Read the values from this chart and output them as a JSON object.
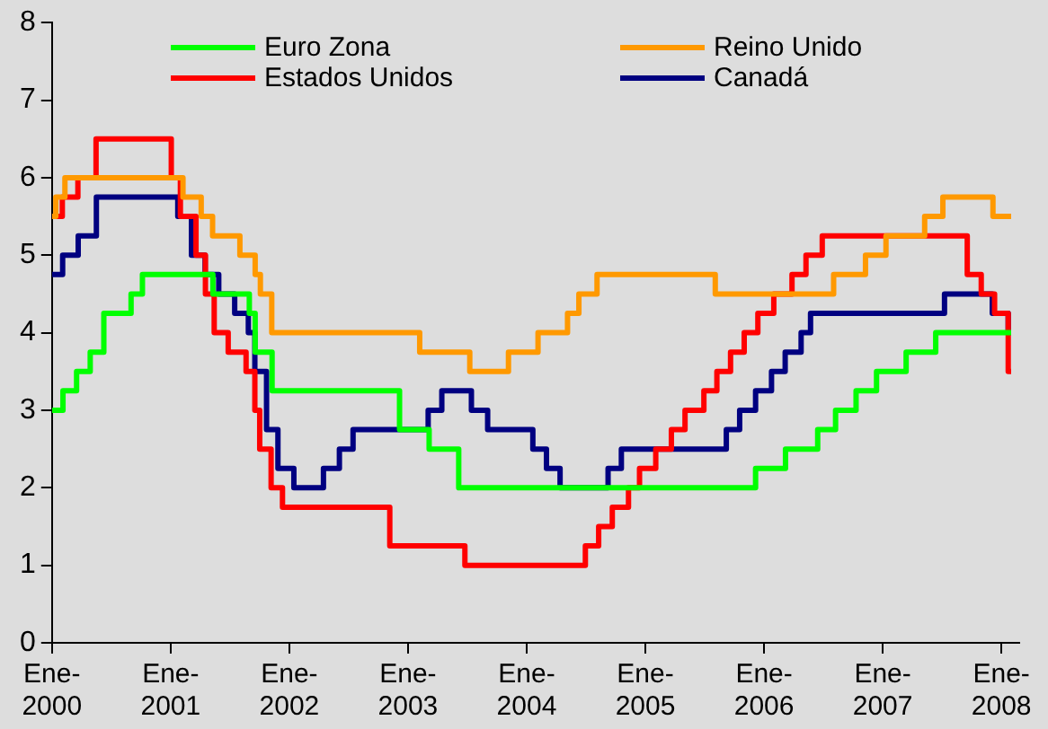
{
  "chart_data": {
    "type": "step",
    "legend": "top",
    "grid": false,
    "marker": "none",
    "line_style": "solid",
    "xlim": [
      "2000-01-01",
      "2008-02-25"
    ],
    "ylim": [
      0,
      8
    ],
    "xticks": [
      {
        "value": "2000-01",
        "label": "Ene-2000"
      },
      {
        "value": "2001-01",
        "label": "Ene-2001"
      },
      {
        "value": "2002-01",
        "label": "Ene-2002"
      },
      {
        "value": "2003-01",
        "label": "Ene-2003"
      },
      {
        "value": "2004-01",
        "label": "Ene-2004"
      },
      {
        "value": "2005-01",
        "label": "Ene-2005"
      },
      {
        "value": "2006-01",
        "label": "Ene-2006"
      },
      {
        "value": "2007-01",
        "label": "Ene-2007"
      },
      {
        "value": "2008-01",
        "label": "Ene-2008"
      }
    ],
    "yticks": [
      0,
      1,
      2,
      3,
      4,
      5,
      6,
      7,
      8
    ],
    "series": [
      {
        "name": "Euro Zona",
        "color": "#00ff00",
        "x": [
          "2000-01-01",
          "2000-02-04",
          "2000-03-17",
          "2000-04-28",
          "2000-06-09",
          "2000-09-01",
          "2000-10-06",
          "2001-05-11",
          "2001-08-31",
          "2001-09-18",
          "2001-11-09",
          "2002-12-06",
          "2003-03-07",
          "2003-06-06",
          "2005-12-06",
          "2006-03-08",
          "2006-06-15",
          "2006-08-09",
          "2006-10-11",
          "2006-12-13",
          "2007-03-14",
          "2007-06-13",
          "2008-01-31"
        ],
        "values": [
          3.0,
          3.25,
          3.5,
          3.75,
          4.25,
          4.5,
          4.75,
          4.5,
          4.25,
          3.75,
          3.25,
          2.75,
          2.5,
          2.0,
          2.25,
          2.5,
          2.75,
          3.0,
          3.25,
          3.5,
          3.75,
          4.0,
          4.0
        ]
      },
      {
        "name": "Reino Unido",
        "color": "#ff9900",
        "x": [
          "2000-01-01",
          "2000-01-13",
          "2000-02-10",
          "2001-02-08",
          "2001-04-05",
          "2001-05-10",
          "2001-08-02",
          "2001-09-18",
          "2001-10-04",
          "2001-11-08",
          "2003-02-06",
          "2003-07-10",
          "2003-11-06",
          "2004-02-05",
          "2004-05-06",
          "2004-06-10",
          "2004-08-05",
          "2005-08-04",
          "2006-08-03",
          "2006-11-09",
          "2007-01-11",
          "2007-05-10",
          "2007-07-05",
          "2007-12-06",
          "2008-01-31"
        ],
        "values": [
          5.5,
          5.75,
          6.0,
          5.75,
          5.5,
          5.25,
          5.0,
          4.75,
          4.5,
          4.0,
          3.75,
          3.5,
          3.75,
          4.0,
          4.25,
          4.5,
          4.75,
          4.5,
          4.75,
          5.0,
          5.25,
          5.5,
          5.75,
          5.5,
          5.5
        ]
      },
      {
        "name": "Estados Unidos",
        "color": "#ff0000",
        "x": [
          "2000-01-01",
          "2000-02-02",
          "2000-03-21",
          "2000-05-16",
          "2001-01-03",
          "2001-01-31",
          "2001-03-20",
          "2001-04-18",
          "2001-05-15",
          "2001-06-27",
          "2001-08-21",
          "2001-09-17",
          "2001-10-02",
          "2001-11-06",
          "2001-12-11",
          "2002-11-06",
          "2003-06-25",
          "2004-06-30",
          "2004-08-10",
          "2004-09-21",
          "2004-11-10",
          "2004-12-14",
          "2005-02-02",
          "2005-03-22",
          "2005-05-03",
          "2005-06-30",
          "2005-08-09",
          "2005-09-20",
          "2005-11-01",
          "2005-12-13",
          "2006-01-31",
          "2006-03-28",
          "2006-05-10",
          "2006-06-29",
          "2007-09-18",
          "2007-10-31",
          "2007-12-11",
          "2008-01-22",
          "2008-01-31"
        ],
        "values": [
          5.5,
          5.75,
          6.0,
          6.5,
          6.0,
          5.5,
          5.0,
          4.5,
          4.0,
          3.75,
          3.5,
          3.0,
          2.5,
          2.0,
          1.75,
          1.25,
          1.0,
          1.25,
          1.5,
          1.75,
          2.0,
          2.25,
          2.5,
          2.75,
          3.0,
          3.25,
          3.5,
          3.75,
          4.0,
          4.25,
          4.5,
          4.75,
          5.0,
          5.25,
          4.75,
          4.5,
          4.25,
          3.5,
          3.5
        ]
      },
      {
        "name": "Canadá",
        "color": "#000080",
        "x": [
          "2000-01-01",
          "2000-02-03",
          "2000-03-22",
          "2000-05-17",
          "2001-01-23",
          "2001-03-06",
          "2001-04-17",
          "2001-05-29",
          "2001-07-17",
          "2001-08-28",
          "2001-09-17",
          "2001-10-23",
          "2001-11-27",
          "2002-01-15",
          "2002-04-16",
          "2002-06-04",
          "2002-07-16",
          "2003-03-04",
          "2003-04-15",
          "2003-07-15",
          "2003-09-03",
          "2004-01-20",
          "2004-03-02",
          "2004-04-13",
          "2004-09-08",
          "2004-10-19",
          "2005-09-07",
          "2005-10-18",
          "2005-12-06",
          "2006-01-24",
          "2006-03-07",
          "2006-04-25",
          "2006-05-24",
          "2007-07-10",
          "2007-12-04",
          "2008-01-22",
          "2008-01-31"
        ],
        "values": [
          4.75,
          5.0,
          5.25,
          5.75,
          5.5,
          5.0,
          4.75,
          4.5,
          4.25,
          4.0,
          3.5,
          2.75,
          2.25,
          2.0,
          2.25,
          2.5,
          2.75,
          3.0,
          3.25,
          3.0,
          2.75,
          2.5,
          2.25,
          2.0,
          2.25,
          2.5,
          2.75,
          3.0,
          3.25,
          3.5,
          3.75,
          4.0,
          4.25,
          4.5,
          4.25,
          4.0,
          4.0
        ]
      }
    ]
  }
}
